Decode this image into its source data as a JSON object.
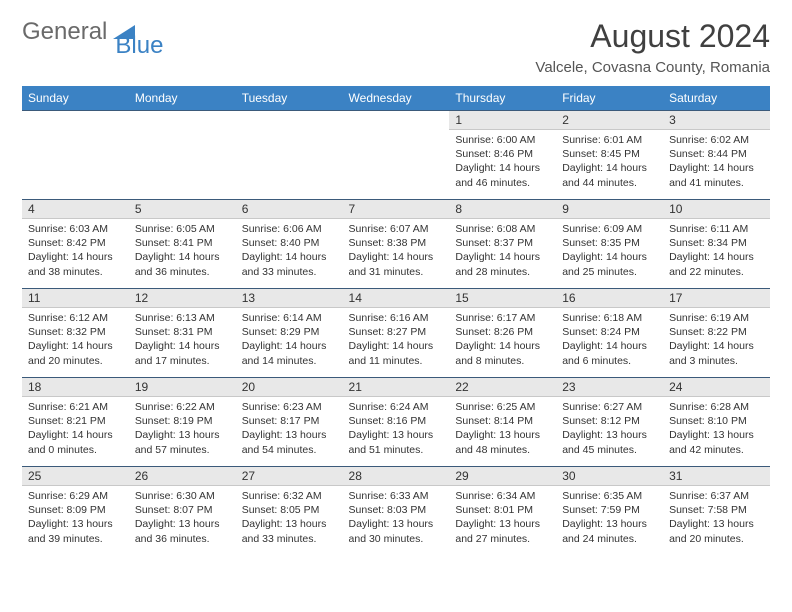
{
  "brand": {
    "part1": "General",
    "part2": "Blue"
  },
  "title": "August 2024",
  "location": "Valcele, Covasna County, Romania",
  "colors": {
    "header_bg": "#3b82c4",
    "header_fg": "#ffffff",
    "daynum_bg": "#e8e8e8",
    "rule": "#3b5a7a",
    "logo_gray": "#6a6a6a",
    "logo_blue": "#3b82c4"
  },
  "weekdays": [
    "Sunday",
    "Monday",
    "Tuesday",
    "Wednesday",
    "Thursday",
    "Friday",
    "Saturday"
  ],
  "weeks": [
    {
      "nums": [
        "",
        "",
        "",
        "",
        "1",
        "2",
        "3"
      ],
      "cells": [
        null,
        null,
        null,
        null,
        {
          "sr": "6:00 AM",
          "ss": "8:46 PM",
          "dh": 14,
          "dm": 46
        },
        {
          "sr": "6:01 AM",
          "ss": "8:45 PM",
          "dh": 14,
          "dm": 44
        },
        {
          "sr": "6:02 AM",
          "ss": "8:44 PM",
          "dh": 14,
          "dm": 41
        }
      ]
    },
    {
      "nums": [
        "4",
        "5",
        "6",
        "7",
        "8",
        "9",
        "10"
      ],
      "cells": [
        {
          "sr": "6:03 AM",
          "ss": "8:42 PM",
          "dh": 14,
          "dm": 38
        },
        {
          "sr": "6:05 AM",
          "ss": "8:41 PM",
          "dh": 14,
          "dm": 36
        },
        {
          "sr": "6:06 AM",
          "ss": "8:40 PM",
          "dh": 14,
          "dm": 33
        },
        {
          "sr": "6:07 AM",
          "ss": "8:38 PM",
          "dh": 14,
          "dm": 31
        },
        {
          "sr": "6:08 AM",
          "ss": "8:37 PM",
          "dh": 14,
          "dm": 28
        },
        {
          "sr": "6:09 AM",
          "ss": "8:35 PM",
          "dh": 14,
          "dm": 25
        },
        {
          "sr": "6:11 AM",
          "ss": "8:34 PM",
          "dh": 14,
          "dm": 22
        }
      ]
    },
    {
      "nums": [
        "11",
        "12",
        "13",
        "14",
        "15",
        "16",
        "17"
      ],
      "cells": [
        {
          "sr": "6:12 AM",
          "ss": "8:32 PM",
          "dh": 14,
          "dm": 20
        },
        {
          "sr": "6:13 AM",
          "ss": "8:31 PM",
          "dh": 14,
          "dm": 17
        },
        {
          "sr": "6:14 AM",
          "ss": "8:29 PM",
          "dh": 14,
          "dm": 14
        },
        {
          "sr": "6:16 AM",
          "ss": "8:27 PM",
          "dh": 14,
          "dm": 11
        },
        {
          "sr": "6:17 AM",
          "ss": "8:26 PM",
          "dh": 14,
          "dm": 8
        },
        {
          "sr": "6:18 AM",
          "ss": "8:24 PM",
          "dh": 14,
          "dm": 6
        },
        {
          "sr": "6:19 AM",
          "ss": "8:22 PM",
          "dh": 14,
          "dm": 3
        }
      ]
    },
    {
      "nums": [
        "18",
        "19",
        "20",
        "21",
        "22",
        "23",
        "24"
      ],
      "cells": [
        {
          "sr": "6:21 AM",
          "ss": "8:21 PM",
          "dh": 14,
          "dm": 0
        },
        {
          "sr": "6:22 AM",
          "ss": "8:19 PM",
          "dh": 13,
          "dm": 57
        },
        {
          "sr": "6:23 AM",
          "ss": "8:17 PM",
          "dh": 13,
          "dm": 54
        },
        {
          "sr": "6:24 AM",
          "ss": "8:16 PM",
          "dh": 13,
          "dm": 51
        },
        {
          "sr": "6:25 AM",
          "ss": "8:14 PM",
          "dh": 13,
          "dm": 48
        },
        {
          "sr": "6:27 AM",
          "ss": "8:12 PM",
          "dh": 13,
          "dm": 45
        },
        {
          "sr": "6:28 AM",
          "ss": "8:10 PM",
          "dh": 13,
          "dm": 42
        }
      ]
    },
    {
      "nums": [
        "25",
        "26",
        "27",
        "28",
        "29",
        "30",
        "31"
      ],
      "cells": [
        {
          "sr": "6:29 AM",
          "ss": "8:09 PM",
          "dh": 13,
          "dm": 39
        },
        {
          "sr": "6:30 AM",
          "ss": "8:07 PM",
          "dh": 13,
          "dm": 36
        },
        {
          "sr": "6:32 AM",
          "ss": "8:05 PM",
          "dh": 13,
          "dm": 33
        },
        {
          "sr": "6:33 AM",
          "ss": "8:03 PM",
          "dh": 13,
          "dm": 30
        },
        {
          "sr": "6:34 AM",
          "ss": "8:01 PM",
          "dh": 13,
          "dm": 27
        },
        {
          "sr": "6:35 AM",
          "ss": "7:59 PM",
          "dh": 13,
          "dm": 24
        },
        {
          "sr": "6:37 AM",
          "ss": "7:58 PM",
          "dh": 13,
          "dm": 20
        }
      ]
    }
  ]
}
